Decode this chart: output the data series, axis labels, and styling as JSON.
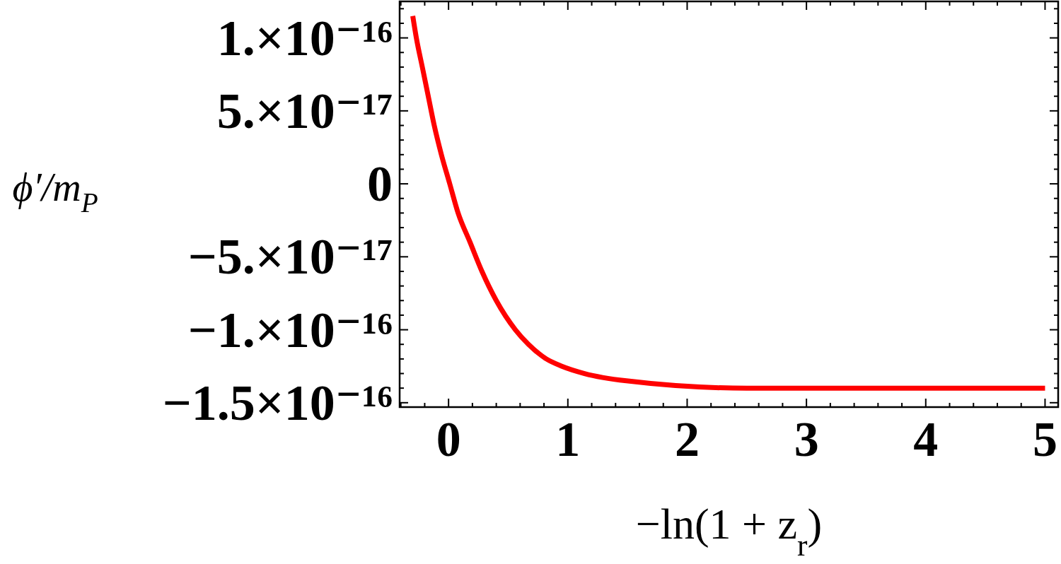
{
  "chart_data": {
    "type": "line",
    "xlabel": "−ln(1 + z$_{r}$)",
    "ylabel": "ϕ′/m$_{P}$",
    "x": [
      -0.3,
      -0.27,
      -0.22,
      -0.17,
      -0.12,
      -0.06,
      0.01,
      0.08,
      0.18,
      0.28,
      0.4,
      0.56,
      0.67,
      0.82,
      0.95,
      1.14,
      1.49,
      2.5,
      3.5,
      5.0
    ],
    "values": [
      1.15e-16,
      1e-16,
      8e-17,
      6e-17,
      4e-17,
      2e-17,
      0,
      -2e-17,
      -4e-17,
      -6e-17,
      -8e-17,
      -1e-16,
      -1.1e-16,
      -1.2e-16,
      -1.25e-16,
      -1.3e-16,
      -1.35e-16,
      -1.4e-16,
      -1.4e-16,
      -1.4e-16
    ],
    "color": "#ff0000",
    "xlim": [
      -0.41,
      5.11
    ],
    "xticks": [
      {
        "value": -0.4,
        "label": null
      },
      {
        "value": -0.2,
        "label": null
      },
      0,
      {
        "value": 0.2,
        "label": null
      },
      {
        "value": 0.4,
        "label": null
      },
      {
        "value": 0.6,
        "label": null
      },
      {
        "value": 0.8,
        "label": null
      },
      1,
      {
        "value": 1.2,
        "label": null
      },
      {
        "value": 1.4,
        "label": null
      },
      {
        "value": 1.6,
        "label": null
      },
      {
        "value": 1.8,
        "label": null
      },
      2,
      {
        "value": 2.2,
        "label": null
      },
      {
        "value": 2.4,
        "label": null
      },
      {
        "value": 2.6,
        "label": null
      },
      {
        "value": 2.8,
        "label": null
      },
      3,
      {
        "value": 3.2,
        "label": null
      },
      {
        "value": 3.4,
        "label": null
      },
      {
        "value": 3.6,
        "label": null
      },
      {
        "value": 3.8,
        "label": null
      },
      4,
      {
        "value": 4.2,
        "label": null
      },
      {
        "value": 4.4,
        "label": null
      },
      {
        "value": 4.6,
        "label": null
      },
      {
        "value": 4.8,
        "label": null
      },
      5
    ],
    "ylim": [
      -1.53e-16,
      1.25e-16
    ],
    "yticks": [
      {
        "value": -1.5e-16,
        "label": "−1.5×10⁻¹⁶"
      },
      {
        "value": -1.4e-16,
        "label": null
      },
      {
        "value": -1.3e-16,
        "label": null
      },
      {
        "value": -1.2e-16,
        "label": null
      },
      {
        "value": -1.1e-16,
        "label": null
      },
      {
        "value": -1e-16,
        "label": "−1.×10⁻¹⁶"
      },
      {
        "value": -9e-17,
        "label": null
      },
      {
        "value": -8e-17,
        "label": null
      },
      {
        "value": -7e-17,
        "label": null
      },
      {
        "value": -6e-17,
        "label": null
      },
      {
        "value": -5e-17,
        "label": "−5.×10⁻¹⁷"
      },
      {
        "value": -4e-17,
        "label": null
      },
      {
        "value": -3e-17,
        "label": null
      },
      {
        "value": -2e-17,
        "label": null
      },
      {
        "value": -1e-17,
        "label": null
      },
      0,
      {
        "value": 1e-17,
        "label": null
      },
      {
        "value": 2e-17,
        "label": null
      },
      {
        "value": 3e-17,
        "label": null
      },
      {
        "value": 4e-17,
        "label": null
      },
      {
        "value": 5e-17,
        "label": "5.×10⁻¹⁷"
      },
      {
        "value": 6e-17,
        "label": null
      },
      {
        "value": 7e-17,
        "label": null
      },
      {
        "value": 8e-17,
        "label": null
      },
      {
        "value": 9e-17,
        "label": null
      },
      {
        "value": 1e-16,
        "label": "1.×10⁻¹⁶"
      },
      {
        "value": 1.1e-16,
        "label": null
      },
      {
        "value": 1.2e-16,
        "label": null
      }
    ]
  }
}
